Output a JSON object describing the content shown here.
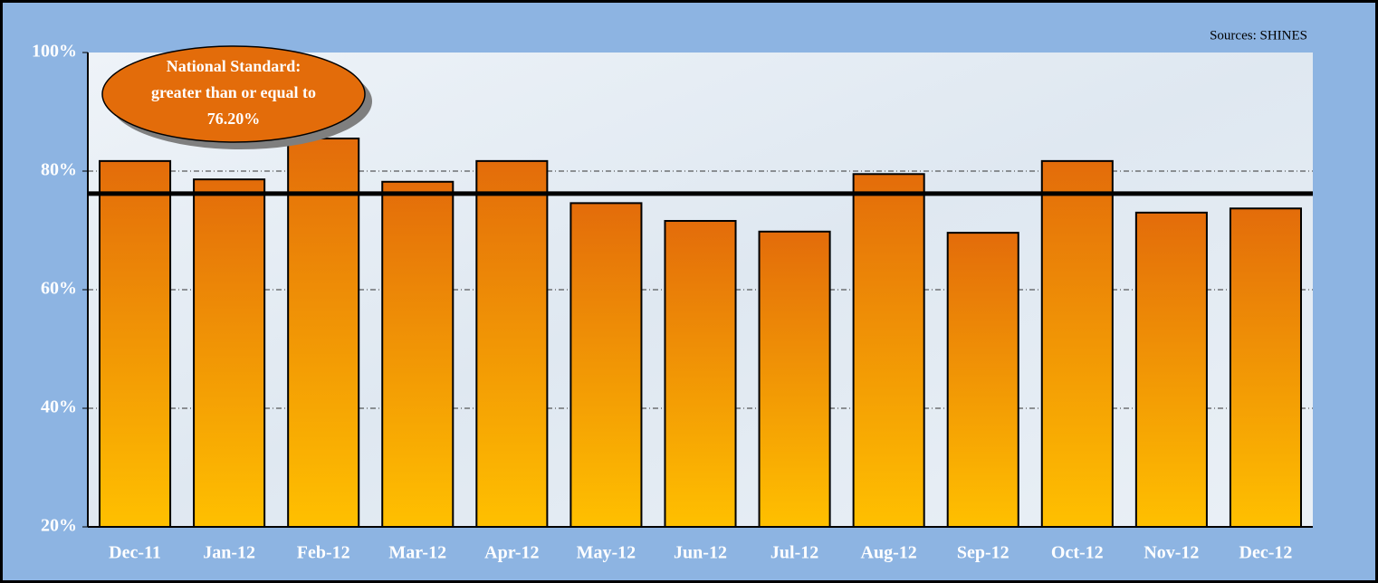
{
  "chart_data": {
    "type": "bar",
    "source": "Sources: SHINES",
    "annotation": [
      "National Standard:",
      "greater than or equal to",
      "76.20%"
    ],
    "reference_line": 76.2,
    "categories": [
      "Dec-11",
      "Jan-12",
      "Feb-12",
      "Mar-12",
      "Apr-12",
      "May-12",
      "Jun-12",
      "Jul-12",
      "Aug-12",
      "Sep-12",
      "Oct-12",
      "Nov-12",
      "Dec-12"
    ],
    "values": [
      81.7,
      78.6,
      85.5,
      78.2,
      81.7,
      74.6,
      71.6,
      69.8,
      79.5,
      69.6,
      81.7,
      73.0,
      73.7
    ],
    "color": [
      "#e36c0a",
      "#ffc000"
    ],
    "ylim": [
      20,
      100
    ],
    "yticks": [
      {
        "value": 20,
        "label": "20%"
      },
      {
        "value": 40,
        "label": "40%"
      },
      {
        "value": 60,
        "label": "60%"
      },
      {
        "value": 80,
        "label": "80%"
      },
      {
        "value": 100,
        "label": "100%"
      }
    ],
    "grid": true
  }
}
